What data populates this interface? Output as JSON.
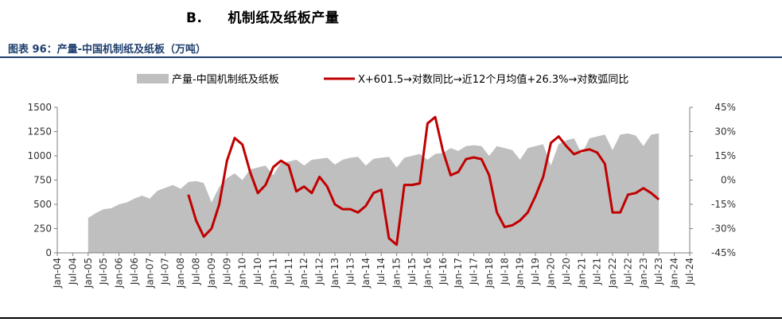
{
  "header": {
    "section_label": "B.",
    "section_title": "机制纸及纸板产量",
    "figure_title": "图表 96：产量-中国机制纸及纸板（万吨）"
  },
  "colors": {
    "area_fill": "#bfbfbf",
    "line_color": "#c00000",
    "title_color": "#1f3f6e"
  },
  "chart_data": {
    "type": "area",
    "title": "",
    "legend_position": "top",
    "grid": false,
    "x_tick_labels": [
      "Jan-04",
      "Jul-04",
      "Jan-05",
      "Jul-05",
      "Jan-06",
      "Jul-06",
      "Jan-07",
      "Jul-07",
      "Jan-08",
      "Jul-08",
      "Jan-09",
      "Jul-09",
      "Jan-10",
      "Jul-10",
      "Jan-11",
      "Jul-11",
      "Jan-12",
      "Jul-12",
      "Jan-13",
      "Jul-13",
      "Jan-14",
      "Jul-14",
      "Jan-15",
      "Jul-15",
      "Jan-16",
      "Jul-16",
      "Jan-17",
      "Jul-17",
      "Jan-18",
      "Jul-18",
      "Jan-19",
      "Jul-19",
      "Jan-20",
      "Jul-20",
      "Jan-21",
      "Jul-21",
      "Jan-22",
      "Jul-22",
      "Jan-23",
      "Jul-23",
      "Jan-24",
      "Jul-24"
    ],
    "y_left": {
      "min": 0,
      "max": 1500,
      "ticks": [
        "0",
        "250",
        "500",
        "750",
        "1000",
        "1250",
        "1500"
      ]
    },
    "y_right": {
      "min": -45,
      "max": 45,
      "ticks": [
        "-45%",
        "-30%",
        "-15%",
        "0%",
        "15%",
        "30%",
        "45%"
      ]
    },
    "series": [
      {
        "name": "产量-中国机制纸及纸板",
        "type": "area",
        "axis": "left",
        "x": [
          "2005-01",
          "2005-04",
          "2005-07",
          "2005-10",
          "2006-01",
          "2006-04",
          "2006-07",
          "2006-10",
          "2007-01",
          "2007-04",
          "2007-07",
          "2007-10",
          "2008-01",
          "2008-04",
          "2008-07",
          "2008-10",
          "2009-01",
          "2009-04",
          "2009-07",
          "2009-10",
          "2010-01",
          "2010-04",
          "2010-07",
          "2010-10",
          "2011-01",
          "2011-04",
          "2011-07",
          "2011-10",
          "2012-01",
          "2012-04",
          "2012-07",
          "2012-10",
          "2013-01",
          "2013-04",
          "2013-07",
          "2013-10",
          "2014-01",
          "2014-04",
          "2014-07",
          "2014-10",
          "2015-01",
          "2015-04",
          "2015-07",
          "2015-10",
          "2016-01",
          "2016-04",
          "2016-07",
          "2016-10",
          "2017-01",
          "2017-04",
          "2017-07",
          "2017-10",
          "2018-01",
          "2018-04",
          "2018-07",
          "2018-10",
          "2019-01",
          "2019-04",
          "2019-07",
          "2019-10",
          "2020-01",
          "2020-04",
          "2020-07",
          "2020-10",
          "2021-01",
          "2021-04",
          "2021-07",
          "2021-10",
          "2022-01",
          "2022-04",
          "2022-07",
          "2022-10",
          "2023-01",
          "2023-04",
          "2023-07"
        ],
        "values": [
          360,
          410,
          450,
          460,
          500,
          520,
          560,
          590,
          560,
          640,
          670,
          700,
          660,
          730,
          740,
          720,
          520,
          680,
          770,
          820,
          750,
          860,
          880,
          900,
          800,
          930,
          940,
          960,
          900,
          960,
          970,
          980,
          910,
          960,
          980,
          990,
          900,
          970,
          980,
          990,
          880,
          980,
          1000,
          1020,
          960,
          1020,
          1030,
          1080,
          1050,
          1100,
          1110,
          1100,
          1000,
          1100,
          1080,
          1060,
          960,
          1080,
          1100,
          1120,
          900,
          1120,
          1160,
          1180,
          1020,
          1180,
          1200,
          1220,
          1060,
          1220,
          1230,
          1210,
          1100,
          1220,
          1230
        ]
      },
      {
        "name": "X+601.5→对数同比→近12个月均值+26.3%→对数弧同比",
        "type": "line",
        "axis": "right",
        "x": [
          "2008-04",
          "2008-07",
          "2008-10",
          "2009-01",
          "2009-04",
          "2009-07",
          "2009-10",
          "2010-01",
          "2010-04",
          "2010-07",
          "2010-10",
          "2011-01",
          "2011-04",
          "2011-07",
          "2011-10",
          "2012-01",
          "2012-04",
          "2012-07",
          "2012-10",
          "2013-01",
          "2013-04",
          "2013-07",
          "2013-10",
          "2014-01",
          "2014-04",
          "2014-07",
          "2014-10",
          "2015-01",
          "2015-04",
          "2015-07",
          "2015-10",
          "2016-01",
          "2016-04",
          "2016-07",
          "2016-10",
          "2017-01",
          "2017-04",
          "2017-07",
          "2017-10",
          "2018-01",
          "2018-04",
          "2018-07",
          "2018-10",
          "2019-01",
          "2019-04",
          "2019-07",
          "2019-10",
          "2020-01",
          "2020-04",
          "2020-07",
          "2020-10",
          "2021-01",
          "2021-04",
          "2021-07",
          "2021-10",
          "2022-01",
          "2022-04",
          "2022-07",
          "2022-10",
          "2023-01",
          "2023-04",
          "2023-07"
        ],
        "values": [
          -9,
          -25,
          -35,
          -30,
          -15,
          12,
          26,
          22,
          5,
          -8,
          -3,
          8,
          12,
          9,
          -7,
          -4,
          -8,
          2,
          -4,
          -15,
          -18,
          -18,
          -20,
          -16,
          -8,
          -6,
          -36,
          -40,
          -3,
          -3,
          -2,
          35,
          39,
          18,
          3,
          5,
          13,
          14,
          13,
          3,
          -20,
          -29,
          -28,
          -25,
          -20,
          -10,
          2,
          23,
          27,
          21,
          16,
          18,
          19,
          17,
          10,
          -20,
          -20,
          -9,
          -8,
          -5,
          -8,
          -12
        ]
      }
    ]
  }
}
